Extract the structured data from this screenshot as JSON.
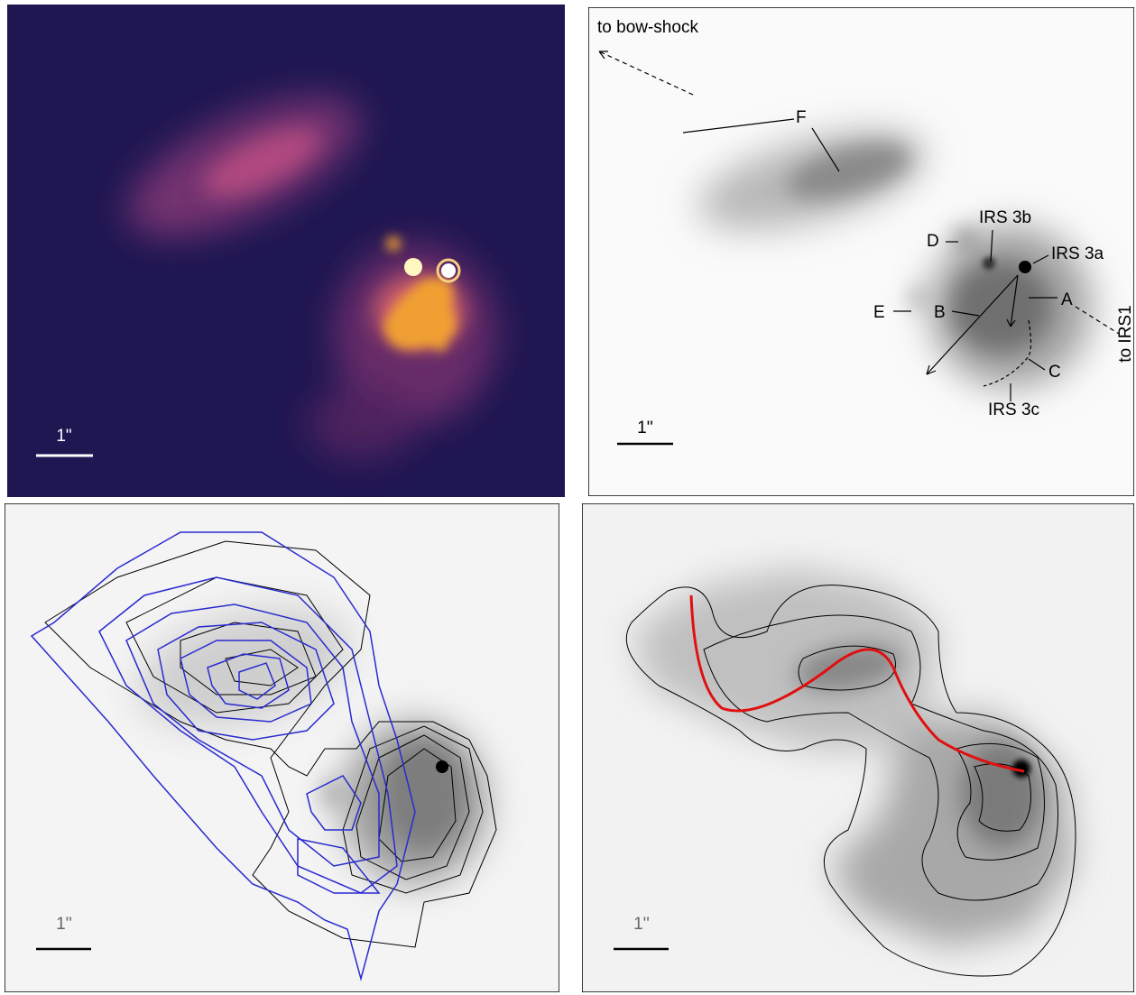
{
  "panels": [
    {
      "scale_label": "1\""
    },
    {
      "annotations": [
        "to bow-shock",
        "F",
        "IRS 3b",
        "D",
        "IRS 3a",
        "E",
        "B",
        "A",
        "to IRS1",
        "C",
        "IRS 3c"
      ],
      "scale_label": "1''"
    },
    {
      "scale_label": "1''"
    },
    {
      "scale_label": "1''"
    }
  ]
}
